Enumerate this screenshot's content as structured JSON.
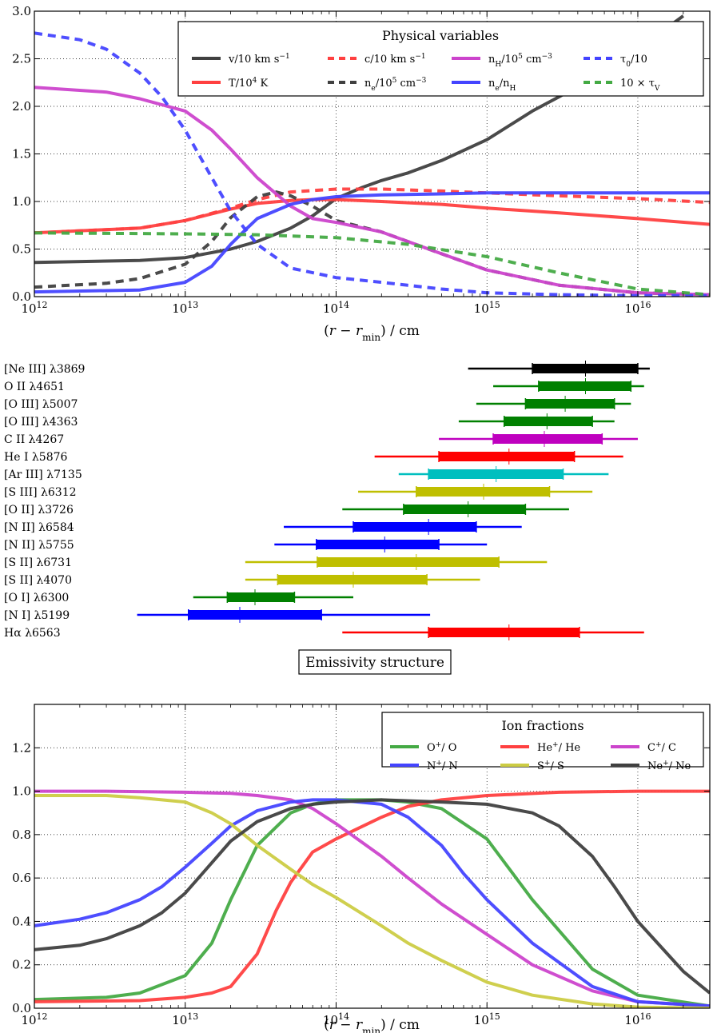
{
  "chart_data": [
    {
      "type": "line",
      "xscale": "log",
      "xlim": [
        1000000000000.0,
        3e+16
      ],
      "ylim": [
        0,
        3.0
      ],
      "grid": true,
      "xlabel": "(r − r_min) / cm",
      "xtick_labels": [
        "10",
        "10",
        "10",
        "10",
        "10"
      ],
      "xtick_exps": [
        "12",
        "13",
        "14",
        "15",
        "16"
      ],
      "xtick_values": [
        1000000000000.0,
        10000000000000.0,
        100000000000000.0,
        1000000000000000.0,
        1e+16
      ],
      "ytick_labels": [
        "0.0",
        "0.5",
        "1.0",
        "1.5",
        "2.0",
        "2.5",
        "3.0"
      ],
      "legend": {
        "title": "Physical variables",
        "position": "top-right"
      },
      "series": [
        {
          "name": "v/10 km s⁻¹",
          "color": "#404040",
          "dash": "solid",
          "x": [
            1000000000000.0,
            5000000000000.0,
            10000000000000.0,
            20000000000000.0,
            30000000000000.0,
            50000000000000.0,
            70000000000000.0,
            100000000000000.0,
            150000000000000.0,
            200000000000000.0,
            300000000000000.0,
            500000000000000.0,
            1000000000000000.0,
            2000000000000000.0,
            3000000000000000.0,
            5000000000000000.0,
            1e+16,
            2e+16
          ],
          "y": [
            0.36,
            0.38,
            0.41,
            0.5,
            0.58,
            0.72,
            0.85,
            1.03,
            1.15,
            1.22,
            1.3,
            1.43,
            1.65,
            1.95,
            2.1,
            2.3,
            2.6,
            2.95
          ]
        },
        {
          "name": "T/10⁴ K",
          "color": "#ff4040",
          "dash": "solid",
          "x": [
            1000000000000.0,
            5000000000000.0,
            10000000000000.0,
            20000000000000.0,
            30000000000000.0,
            50000000000000.0,
            70000000000000.0,
            100000000000000.0,
            200000000000000.0,
            500000000000000.0,
            1000000000000000.0,
            3000000000000000.0,
            1e+16,
            3e+16
          ],
          "y": [
            0.67,
            0.72,
            0.8,
            0.92,
            0.98,
            1.01,
            1.02,
            1.02,
            1.0,
            0.97,
            0.93,
            0.88,
            0.82,
            0.76
          ]
        },
        {
          "name": "c/10 km s⁻¹",
          "color": "#ff4040",
          "dash": "dashed",
          "x": [
            1000000000000.0,
            5000000000000.0,
            10000000000000.0,
            20000000000000.0,
            30000000000000.0,
            50000000000000.0,
            100000000000000.0,
            200000000000000.0,
            500000000000000.0,
            1000000000000000.0,
            3000000000000000.0,
            1e+16,
            3e+16
          ],
          "y": [
            0.67,
            0.72,
            0.8,
            0.93,
            1.02,
            1.1,
            1.13,
            1.13,
            1.11,
            1.09,
            1.06,
            1.03,
            0.99
          ]
        },
        {
          "name": "n_e/10⁵ cm⁻³",
          "color": "#404040",
          "dash": "dashed",
          "x": [
            1000000000000.0,
            3000000000000.0,
            5000000000000.0,
            10000000000000.0,
            15000000000000.0,
            20000000000000.0,
            30000000000000.0,
            40000000000000.0,
            50000000000000.0,
            70000000000000.0,
            100000000000000.0,
            200000000000000.0,
            500000000000000.0,
            1000000000000000.0,
            3000000000000000.0,
            1e+16,
            3e+16
          ],
          "y": [
            0.1,
            0.14,
            0.19,
            0.34,
            0.58,
            0.83,
            1.05,
            1.1,
            1.06,
            0.95,
            0.8,
            0.68,
            0.45,
            0.28,
            0.12,
            0.04,
            0.02
          ]
        },
        {
          "name": "n_H/10⁵ cm⁻³",
          "color": "#cc44cc",
          "dash": "solid",
          "x": [
            1000000000000.0,
            3000000000000.0,
            5000000000000.0,
            10000000000000.0,
            15000000000000.0,
            20000000000000.0,
            30000000000000.0,
            50000000000000.0,
            70000000000000.0,
            100000000000000.0,
            200000000000000.0,
            500000000000000.0,
            1000000000000000.0,
            3000000000000000.0,
            1e+16,
            3e+16
          ],
          "y": [
            2.2,
            2.15,
            2.08,
            1.95,
            1.75,
            1.55,
            1.25,
            0.95,
            0.82,
            0.78,
            0.68,
            0.45,
            0.28,
            0.12,
            0.04,
            0.02
          ]
        },
        {
          "name": "n_e/n_H",
          "color": "#4444ff",
          "dash": "solid",
          "x": [
            1000000000000.0,
            5000000000000.0,
            10000000000000.0,
            15000000000000.0,
            20000000000000.0,
            25000000000000.0,
            30000000000000.0,
            50000000000000.0,
            70000000000000.0,
            100000000000000.0,
            200000000000000.0,
            500000000000000.0,
            1000000000000000.0,
            3e+16
          ],
          "y": [
            0.05,
            0.07,
            0.15,
            0.32,
            0.55,
            0.7,
            0.82,
            0.97,
            1.02,
            1.05,
            1.07,
            1.08,
            1.09,
            1.09
          ]
        },
        {
          "name": "τ₀/10",
          "color": "#4444ff",
          "dash": "dashed",
          "x": [
            1000000000000.0,
            2000000000000.0,
            3000000000000.0,
            5000000000000.0,
            7000000000000.0,
            10000000000000.0,
            15000000000000.0,
            20000000000000.0,
            30000000000000.0,
            50000000000000.0,
            100000000000000.0,
            200000000000000.0,
            500000000000000.0,
            1000000000000000.0,
            3000000000000000.0,
            1e+16,
            3e+16
          ],
          "y": [
            2.77,
            2.7,
            2.6,
            2.35,
            2.1,
            1.75,
            1.25,
            0.9,
            0.55,
            0.3,
            0.2,
            0.15,
            0.08,
            0.04,
            0.02,
            0.01,
            0.01
          ]
        },
        {
          "name": "10 × τ_V",
          "color": "#44aa44",
          "dash": "dashed",
          "x": [
            1000000000000.0,
            10000000000000.0,
            30000000000000.0,
            100000000000000.0,
            300000000000000.0,
            1000000000000000.0,
            3000000000000000.0,
            1e+16,
            3e+16
          ],
          "y": [
            0.67,
            0.66,
            0.65,
            0.62,
            0.55,
            0.42,
            0.25,
            0.08,
            0.02
          ]
        }
      ]
    },
    {
      "type": "interval",
      "title": "Emissivity structure",
      "xscale": "log",
      "xlim": [
        1000000000000.0,
        3e+16
      ],
      "lines": [
        {
          "label": "[Ne III] λ3869",
          "color": "#000000",
          "outer": [
            750000000000000.0,
            1.2e+16
          ],
          "inner": [
            2000000000000000.0,
            1e+16
          ],
          "median": 4500000000000000.0
        },
        {
          "label": "O II λ4651",
          "color": "#008000",
          "outer": [
            1100000000000000.0,
            1.1e+16
          ],
          "inner": [
            2200000000000000.0,
            9000000000000000.0
          ],
          "median": 4500000000000000.0
        },
        {
          "label": "[O III] λ5007",
          "color": "#008000",
          "outer": [
            850000000000000.0,
            9000000000000000.0
          ],
          "inner": [
            1800000000000000.0,
            7000000000000000.0
          ],
          "median": 3300000000000000.0
        },
        {
          "label": "[O III] λ4363",
          "color": "#008000",
          "outer": [
            650000000000000.0,
            7000000000000000.0
          ],
          "inner": [
            1300000000000000.0,
            5000000000000000.0
          ],
          "median": 2500000000000000.0
        },
        {
          "label": "C II λ4267",
          "color": "#bf00bf",
          "outer": [
            480000000000000.0,
            1e+16
          ],
          "inner": [
            1100000000000000.0,
            5800000000000000.0
          ],
          "median": 2400000000000000.0
        },
        {
          "label": "He I λ5876",
          "color": "#ff0000",
          "outer": [
            180000000000000.0,
            8000000000000000.0
          ],
          "inner": [
            480000000000000.0,
            3800000000000000.0
          ],
          "median": 1400000000000000.0
        },
        {
          "label": "[Ar III] λ7135",
          "color": "#00bfbf",
          "outer": [
            260000000000000.0,
            6400000000000000.0
          ],
          "inner": [
            410000000000000.0,
            3200000000000000.0
          ],
          "median": 1150000000000000.0
        },
        {
          "label": "[S III] λ6312",
          "color": "#bfbf00",
          "outer": [
            140000000000000.0,
            5000000000000000.0
          ],
          "inner": [
            340000000000000.0,
            2600000000000000.0
          ],
          "median": 950000000000000.0
        },
        {
          "label": "[O II] λ3726",
          "color": "#008000",
          "outer": [
            110000000000000.0,
            3500000000000000.0
          ],
          "inner": [
            280000000000000.0,
            1800000000000000.0
          ],
          "median": 750000000000000.0
        },
        {
          "label": "[N II] λ6584",
          "color": "#0000ff",
          "outer": [
            45000000000000.0,
            1700000000000000.0
          ],
          "inner": [
            130000000000000.0,
            850000000000000.0
          ],
          "median": 410000000000000.0
        },
        {
          "label": "[N II] λ5755",
          "color": "#0000ff",
          "outer": [
            39000000000000.0,
            1000000000000000.0
          ],
          "inner": [
            74000000000000.0,
            480000000000000.0
          ],
          "median": 210000000000000.0
        },
        {
          "label": "[S II] λ6731",
          "color": "#bfbf00",
          "outer": [
            25000000000000.0,
            2500000000000000.0
          ],
          "inner": [
            75000000000000.0,
            1200000000000000.0
          ],
          "median": 340000000000000.0
        },
        {
          "label": "[S II] λ4070",
          "color": "#bfbf00",
          "outer": [
            25000000000000.0,
            900000000000000.0
          ],
          "inner": [
            41000000000000.0,
            400000000000000.0
          ],
          "median": 130000000000000.0
        },
        {
          "label": "[O I] λ6300",
          "color": "#008000",
          "outer": [
            11300000000000.0,
            130000000000000.0
          ],
          "inner": [
            19000000000000.0,
            53000000000000.0
          ],
          "median": 29000000000000.0
        },
        {
          "label": "[N I] λ5199",
          "color": "#0000ff",
          "outer": [
            4800000000000.0,
            420000000000000.0
          ],
          "inner": [
            10500000000000.0,
            80000000000000.0
          ],
          "median": 23000000000000.0
        },
        {
          "label": "Hα λ6563",
          "color": "#ff0000",
          "outer": [
            110000000000000.0,
            1.1e+16
          ],
          "inner": [
            410000000000000.0,
            4100000000000000.0
          ],
          "median": 1400000000000000.0
        }
      ]
    },
    {
      "type": "line",
      "xscale": "log",
      "xlim": [
        1000000000000.0,
        3e+16
      ],
      "ylim": [
        0,
        1.4
      ],
      "grid": true,
      "xlabel": "(r − r_min) / cm",
      "xtick_labels": [
        "10",
        "10",
        "10",
        "10",
        "10"
      ],
      "xtick_exps": [
        "12",
        "13",
        "14",
        "15",
        "16"
      ],
      "xtick_values": [
        1000000000000.0,
        10000000000000.0,
        100000000000000.0,
        1000000000000000.0,
        1e+16
      ],
      "ytick_labels": [
        "0.0",
        "0.2",
        "0.4",
        "0.6",
        "0.8",
        "1.0",
        "1.2"
      ],
      "legend": {
        "title": "Ion fractions",
        "position": "top-right"
      },
      "series": [
        {
          "name": "O⁺/ O",
          "color": "#44aa44",
          "dash": "solid",
          "x": [
            1000000000000.0,
            3000000000000.0,
            5000000000000.0,
            10000000000000.0,
            15000000000000.0,
            20000000000000.0,
            30000000000000.0,
            50000000000000.0,
            70000000000000.0,
            100000000000000.0,
            200000000000000.0,
            300000000000000.0,
            500000000000000.0,
            1000000000000000.0,
            2000000000000000.0,
            5000000000000000.0,
            1e+16,
            3e+16
          ],
          "y": [
            0.04,
            0.05,
            0.07,
            0.15,
            0.3,
            0.5,
            0.75,
            0.9,
            0.94,
            0.96,
            0.96,
            0.95,
            0.92,
            0.78,
            0.5,
            0.18,
            0.06,
            0.01
          ]
        },
        {
          "name": "He⁺/ He",
          "color": "#ff4040",
          "dash": "solid",
          "x": [
            1000000000000.0,
            5000000000000.0,
            10000000000000.0,
            15000000000000.0,
            20000000000000.0,
            30000000000000.0,
            40000000000000.0,
            50000000000000.0,
            70000000000000.0,
            100000000000000.0,
            200000000000000.0,
            300000000000000.0,
            500000000000000.0,
            1000000000000000.0,
            3000000000000000.0,
            1e+16,
            3e+16
          ],
          "y": [
            0.03,
            0.035,
            0.05,
            0.07,
            0.1,
            0.25,
            0.45,
            0.58,
            0.72,
            0.78,
            0.88,
            0.93,
            0.96,
            0.98,
            0.995,
            1.0,
            1.0
          ]
        },
        {
          "name": "C⁺/ C",
          "color": "#cc44cc",
          "dash": "solid",
          "x": [
            1000000000000.0,
            3000000000000.0,
            10000000000000.0,
            20000000000000.0,
            30000000000000.0,
            50000000000000.0,
            70000000000000.0,
            100000000000000.0,
            200000000000000.0,
            300000000000000.0,
            500000000000000.0,
            1000000000000000.0,
            2000000000000000.0,
            5000000000000000.0,
            1e+16,
            3e+16
          ],
          "y": [
            1.0,
            1.0,
            0.995,
            0.99,
            0.98,
            0.96,
            0.92,
            0.85,
            0.7,
            0.6,
            0.48,
            0.34,
            0.2,
            0.08,
            0.03,
            0.01
          ]
        },
        {
          "name": "N⁺/ N",
          "color": "#4444ff",
          "dash": "solid",
          "x": [
            1000000000000.0,
            2000000000000.0,
            3000000000000.0,
            5000000000000.0,
            7000000000000.0,
            10000000000000.0,
            15000000000000.0,
            20000000000000.0,
            30000000000000.0,
            50000000000000.0,
            70000000000000.0,
            100000000000000.0,
            200000000000000.0,
            300000000000000.0,
            500000000000000.0,
            700000000000000.0,
            1000000000000000.0,
            2000000000000000.0,
            5000000000000000.0,
            1e+16,
            3e+16
          ],
          "y": [
            0.38,
            0.41,
            0.44,
            0.5,
            0.56,
            0.65,
            0.76,
            0.84,
            0.91,
            0.95,
            0.96,
            0.96,
            0.94,
            0.88,
            0.75,
            0.62,
            0.5,
            0.3,
            0.1,
            0.03,
            0.01
          ]
        },
        {
          "name": "S⁺/ S",
          "color": "#cccc44",
          "dash": "solid",
          "x": [
            1000000000000.0,
            3000000000000.0,
            5000000000000.0,
            10000000000000.0,
            15000000000000.0,
            20000000000000.0,
            30000000000000.0,
            50000000000000.0,
            70000000000000.0,
            100000000000000.0,
            200000000000000.0,
            300000000000000.0,
            500000000000000.0,
            1000000000000000.0,
            2000000000000000.0,
            5000000000000000.0,
            1e+16,
            3e+16
          ],
          "y": [
            0.98,
            0.98,
            0.97,
            0.95,
            0.9,
            0.85,
            0.75,
            0.64,
            0.57,
            0.51,
            0.38,
            0.3,
            0.22,
            0.12,
            0.06,
            0.02,
            0.005,
            0.0
          ]
        },
        {
          "name": "Ne⁺/ Ne",
          "color": "#404040",
          "dash": "solid",
          "x": [
            1000000000000.0,
            2000000000000.0,
            3000000000000.0,
            5000000000000.0,
            7000000000000.0,
            10000000000000.0,
            15000000000000.0,
            20000000000000.0,
            30000000000000.0,
            50000000000000.0,
            70000000000000.0,
            100000000000000.0,
            200000000000000.0,
            500000000000000.0,
            1000000000000000.0,
            2000000000000000.0,
            3000000000000000.0,
            5000000000000000.0,
            7000000000000000.0,
            1e+16,
            2e+16,
            3e+16
          ],
          "y": [
            0.27,
            0.29,
            0.32,
            0.38,
            0.44,
            0.53,
            0.67,
            0.77,
            0.86,
            0.92,
            0.94,
            0.95,
            0.96,
            0.95,
            0.94,
            0.9,
            0.84,
            0.7,
            0.56,
            0.4,
            0.17,
            0.07
          ]
        }
      ]
    }
  ]
}
